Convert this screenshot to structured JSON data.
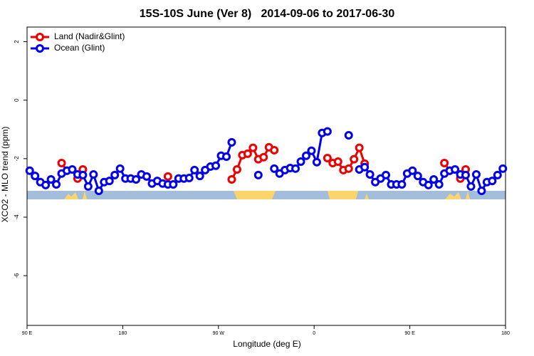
{
  "chart_data": {
    "type": "line",
    "title": "15S-10S June (Ver 8)   2014-09-06 to 2017-06-30",
    "x_label": "Longitude (deg E)",
    "y_label": "XCO2 - MLO trend (ppm)",
    "x": [
      92.5,
      97.5,
      102.5,
      107.5,
      112.5,
      117.5,
      122.5,
      127.5,
      132.5,
      137.5,
      142.5,
      147.5,
      152.5,
      157.5,
      162.5,
      167.5,
      172.5,
      177.5,
      182.5,
      187.5,
      192.5,
      197.5,
      202.5,
      207.5,
      212.5,
      217.5,
      222.5,
      227.5,
      232.5,
      237.5,
      242.5,
      247.5,
      252.5,
      257.5,
      262.5,
      267.5,
      272.5,
      277.5,
      282.5,
      287.5,
      292.5,
      297.5,
      302.5,
      307.5,
      312.5,
      317.5,
      322.5,
      327.5,
      332.5,
      337.5,
      342.5,
      347.5,
      352.5,
      357.5,
      362.5,
      367.5,
      372.5,
      377.5,
      382.5,
      387.5,
      392.5,
      397.5,
      402.5,
      407.5,
      412.5,
      417.5,
      422.5,
      427.5,
      432.5,
      437.5,
      442.5,
      447.5,
      452.5,
      457.5,
      462.5,
      467.5,
      472.5,
      477.5,
      482.5,
      487.5,
      492.5,
      497.5,
      502.5,
      507.5,
      512.5,
      517.5,
      522.5,
      527.5,
      532.5,
      537.5
    ],
    "series": [
      {
        "name": "Land (Nadir&Glint)",
        "color": "#ee0000",
        "values": [
          null,
          null,
          null,
          null,
          null,
          null,
          -2.15,
          -2.41,
          null,
          -2.68,
          -2.37,
          null,
          null,
          null,
          null,
          null,
          null,
          null,
          null,
          null,
          null,
          null,
          null,
          null,
          null,
          null,
          -2.61,
          null,
          null,
          null,
          null,
          null,
          null,
          null,
          null,
          null,
          null,
          null,
          -2.71,
          -2.37,
          -1.88,
          -1.83,
          -1.63,
          -2.02,
          -1.95,
          -1.61,
          -1.71,
          null,
          null,
          null,
          null,
          null,
          null,
          null,
          null,
          null,
          -1.98,
          -2.15,
          -2.1,
          -2.39,
          -2.34,
          -2.02,
          -1.63,
          -2.17,
          null,
          null,
          null,
          null,
          null,
          null,
          null,
          null,
          null,
          null,
          null,
          null,
          null,
          null,
          -2.15,
          -2.41,
          null,
          -2.68,
          -2.37,
          null,
          null,
          null,
          null,
          null,
          null,
          null
        ]
      },
      {
        "name": "Ocean (Glint)",
        "color": "#0000ee",
        "values": [
          -2.41,
          -2.59,
          -2.8,
          -2.9,
          -2.71,
          -2.88,
          -2.51,
          -2.41,
          -2.37,
          -2.54,
          -2.56,
          -2.95,
          -2.54,
          -3.1,
          -2.8,
          -2.76,
          -2.56,
          -2.34,
          -2.68,
          -2.68,
          -2.71,
          -2.54,
          -2.61,
          -2.85,
          -2.76,
          -2.85,
          -2.88,
          -2.88,
          -2.68,
          -2.68,
          -2.66,
          -2.39,
          -2.59,
          -2.39,
          -2.27,
          -2.24,
          -1.9,
          -1.93,
          -1.44,
          null,
          null,
          null,
          null,
          -2.56,
          null,
          null,
          -2.34,
          -2.51,
          -2.39,
          -2.32,
          -2.34,
          -2.1,
          -1.9,
          -1.73,
          -2.12,
          -1.12,
          -1.07,
          null,
          null,
          null,
          -1.2,
          null,
          -2.37,
          -2.29,
          -2.54,
          -2.8,
          -2.68,
          -2.56,
          -2.88,
          -2.88,
          -2.88,
          -2.51,
          -2.41,
          -2.59,
          -2.8,
          -2.9,
          -2.71,
          -2.88,
          -2.51,
          -2.41,
          -2.37,
          -2.54,
          -2.56,
          -2.95,
          -2.54,
          -3.1,
          -2.8,
          -2.76,
          -2.56,
          -2.34
        ]
      }
    ],
    "xlim": [
      90,
      540
    ],
    "xticks": [
      {
        "value": 90,
        "label": "90 E"
      },
      180,
      {
        "value": 270,
        "label": "90 W"
      },
      {
        "value": 360,
        "label": "0"
      },
      {
        "value": 450,
        "label": "90 E"
      },
      {
        "value": 540,
        "label": "180"
      }
    ],
    "ylim": [
      -7.7,
      2.5
    ],
    "yticks": [
      -6,
      -4,
      -2,
      0,
      2
    ],
    "legend": "top-left"
  }
}
